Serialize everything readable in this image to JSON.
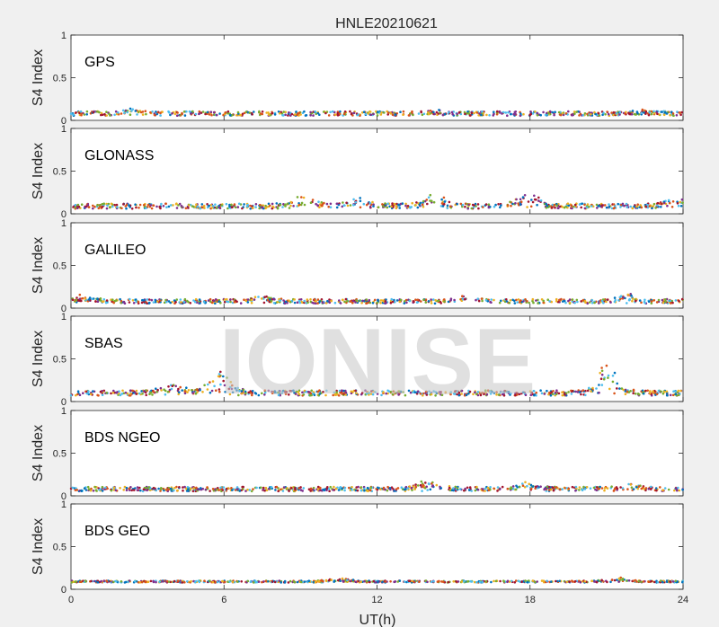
{
  "title": "HNLE20210621",
  "watermark": "IONISE",
  "chart_data": [
    {
      "type": "scatter",
      "panel_label": "GPS",
      "ylabel": "S4 Index",
      "xlim": [
        0,
        24
      ],
      "ylim": [
        0,
        1
      ],
      "yticks": [
        0,
        0.5,
        1
      ],
      "ytick_labels": [
        "0",
        "0.5",
        "1"
      ],
      "baseline": 0.08,
      "spread": 0.05,
      "bumps": [
        {
          "x": 2.5,
          "h": 0.04
        },
        {
          "x": 14.5,
          "h": 0.03
        },
        {
          "x": 22.5,
          "h": 0.03
        }
      ]
    },
    {
      "type": "scatter",
      "panel_label": "GLONASS",
      "ylabel": "S4 Index",
      "xlim": [
        0,
        24
      ],
      "ylim": [
        0,
        1
      ],
      "yticks": [
        0,
        0.5,
        1
      ],
      "ytick_labels": [
        "0",
        "0.5",
        "1"
      ],
      "baseline": 0.09,
      "spread": 0.06,
      "bumps": [
        {
          "x": 9.2,
          "h": 0.12
        },
        {
          "x": 11.2,
          "h": 0.08
        },
        {
          "x": 14.2,
          "h": 0.12
        },
        {
          "x": 17.9,
          "h": 0.14
        },
        {
          "x": 23.8,
          "h": 0.08
        }
      ]
    },
    {
      "type": "scatter",
      "panel_label": "GALILEO",
      "ylabel": "S4 Index",
      "xlim": [
        0,
        24
      ],
      "ylim": [
        0,
        1
      ],
      "yticks": [
        0,
        0.5,
        1
      ],
      "ytick_labels": [
        "0",
        "0.5",
        "1"
      ],
      "baseline": 0.08,
      "spread": 0.05,
      "bumps": [
        {
          "x": 0.4,
          "h": 0.06
        },
        {
          "x": 7.5,
          "h": 0.05
        },
        {
          "x": 15.5,
          "h": 0.06
        },
        {
          "x": 21.8,
          "h": 0.07
        }
      ]
    },
    {
      "type": "scatter",
      "panel_label": "SBAS",
      "ylabel": "S4 Index",
      "xlim": [
        0,
        24
      ],
      "ylim": [
        0,
        1
      ],
      "yticks": [
        0,
        0.5,
        1
      ],
      "ytick_labels": [
        "0",
        "0.5",
        "1"
      ],
      "baseline": 0.1,
      "spread": 0.06,
      "bumps": [
        {
          "x": 4.0,
          "h": 0.1
        },
        {
          "x": 5.9,
          "h": 0.24
        },
        {
          "x": 21.0,
          "h": 0.3
        }
      ]
    },
    {
      "type": "scatter",
      "panel_label": "BDS NGEO",
      "ylabel": "S4 Index",
      "xlim": [
        0,
        24
      ],
      "ylim": [
        0,
        1
      ],
      "yticks": [
        0,
        0.5,
        1
      ],
      "ytick_labels": [
        "0",
        "0.5",
        "1"
      ],
      "baseline": 0.08,
      "spread": 0.05,
      "bumps": [
        {
          "x": 14.0,
          "h": 0.1
        },
        {
          "x": 18.0,
          "h": 0.07
        },
        {
          "x": 22.0,
          "h": 0.05
        }
      ]
    },
    {
      "type": "scatter",
      "panel_label": "BDS GEO",
      "ylabel": "S4 Index",
      "xlim": [
        0,
        24
      ],
      "ylim": [
        0,
        1
      ],
      "yticks": [
        0,
        0.5,
        1
      ],
      "ytick_labels": [
        "0",
        "0.5",
        "1"
      ],
      "baseline": 0.09,
      "spread": 0.02,
      "bumps": [
        {
          "x": 10.5,
          "h": 0.03
        },
        {
          "x": 21.5,
          "h": 0.04
        }
      ]
    }
  ],
  "xaxis": {
    "label": "UT(h)",
    "ticks": [
      0,
      6,
      12,
      18,
      24
    ],
    "tick_labels": [
      "0",
      "6",
      "12",
      "18",
      "24"
    ]
  },
  "series_colors": [
    "#0072BD",
    "#D95319",
    "#EDB120",
    "#7E2F8E",
    "#77AC30",
    "#4DBEEE",
    "#A2142F"
  ]
}
